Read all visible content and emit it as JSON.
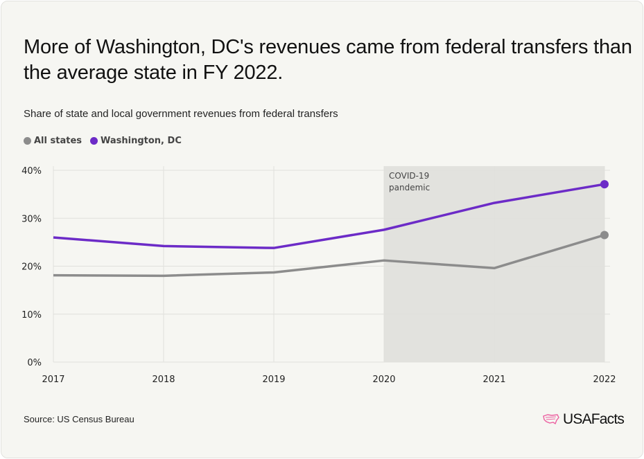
{
  "title": "More of Washington, DC's revenues came from federal transfers than the average state in FY 2022.",
  "subtitle": "Share of state and local government revenues from federal transfers",
  "source": "Source: US Census Bureau",
  "logo": "USAFacts",
  "chart_data": {
    "type": "line",
    "x": [
      2017,
      2018,
      2019,
      2020,
      2021,
      2022
    ],
    "xtick_labels": [
      "2017",
      "2018",
      "2019",
      "2020",
      "2021",
      "2022"
    ],
    "ylim": [
      0,
      40
    ],
    "yticks": [
      0,
      10,
      20,
      30,
      40
    ],
    "ytick_labels": [
      "0%",
      "10%",
      "20%",
      "30%",
      "40%"
    ],
    "grid": true,
    "legend_position": "top-left",
    "series": [
      {
        "name": "All states",
        "color": "#8c8c8c",
        "values": [
          18.1,
          18.0,
          18.7,
          21.2,
          19.6,
          26.5
        ]
      },
      {
        "name": "Washington, DC",
        "color": "#6c2bc7",
        "values": [
          26.0,
          24.2,
          23.8,
          27.6,
          33.2,
          37.1
        ]
      }
    ],
    "annotations": [
      {
        "text": "COVID-19 pandemic",
        "lines": [
          "COVID-19",
          "pandemic"
        ],
        "x_start": 2020,
        "x_end": 2022,
        "shade_color": "#e2e2de"
      }
    ]
  }
}
